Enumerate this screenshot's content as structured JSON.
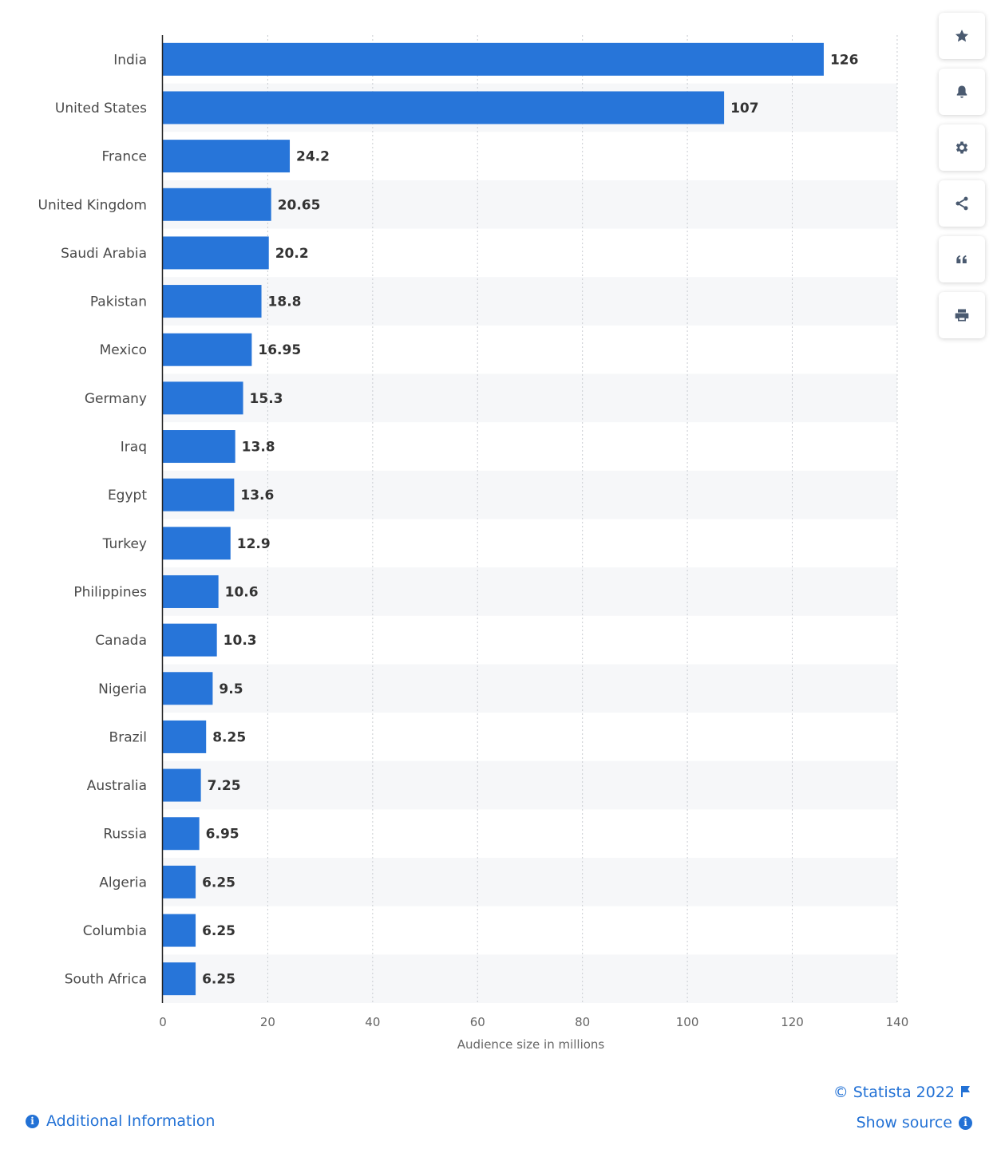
{
  "chart_data": {
    "type": "bar",
    "orientation": "horizontal",
    "categories": [
      "India",
      "United States",
      "France",
      "United Kingdom",
      "Saudi Arabia",
      "Pakistan",
      "Mexico",
      "Germany",
      "Iraq",
      "Egypt",
      "Turkey",
      "Philippines",
      "Canada",
      "Nigeria",
      "Brazil",
      "Australia",
      "Russia",
      "Algeria",
      "Columbia",
      "South Africa"
    ],
    "values": [
      126,
      107,
      24.2,
      20.65,
      20.2,
      18.8,
      16.95,
      15.3,
      13.8,
      13.6,
      12.9,
      10.6,
      10.3,
      9.5,
      8.25,
      7.25,
      6.95,
      6.25,
      6.25,
      6.25
    ],
    "value_labels": [
      "126",
      "107",
      "24.2",
      "20.65",
      "20.2",
      "18.8",
      "16.95",
      "15.3",
      "13.8",
      "13.6",
      "12.9",
      "10.6",
      "10.3",
      "9.5",
      "8.25",
      "7.25",
      "6.95",
      "6.25",
      "6.25",
      "6.25"
    ],
    "xlabel": "Audience size in millions",
    "xlim": [
      0,
      140
    ],
    "xticks": [
      "0",
      "20",
      "40",
      "60",
      "80",
      "100",
      "120",
      "140"
    ],
    "grid": "vertical dashed",
    "bar_color": "#2775d9",
    "alternate_row_color": "#f6f7f9"
  },
  "toolbar": {
    "buttons": [
      {
        "name": "favorite-button",
        "icon": "star-icon"
      },
      {
        "name": "notification-button",
        "icon": "bell-icon"
      },
      {
        "name": "settings-button",
        "icon": "gear-icon"
      },
      {
        "name": "share-button",
        "icon": "share-icon"
      },
      {
        "name": "cite-button",
        "icon": "quote-icon"
      },
      {
        "name": "print-button",
        "icon": "printer-icon"
      }
    ]
  },
  "footer": {
    "copyright": "© Statista 2022",
    "show_source": "Show source",
    "additional_information": "Additional Information",
    "link_color": "#2271d5"
  }
}
